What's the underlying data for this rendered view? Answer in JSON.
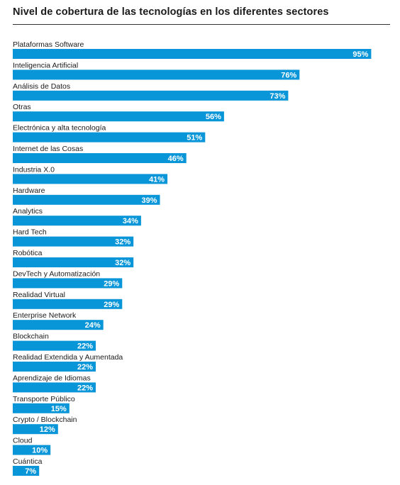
{
  "title": "Nivel de cobertura de las tecnologías en los diferentes sectores",
  "colors": {
    "bar": "#0896d8",
    "rule": "#333333",
    "text": "#1a1a1a",
    "value_text": "#ffffff"
  },
  "chart_data": {
    "type": "bar",
    "orientation": "horizontal",
    "title": "Nivel de cobertura de las tecnologías en los diferentes sectores",
    "categories": [
      "Plataformas Software",
      "Inteligencia Artificial",
      "Análisis de Datos",
      "Otras",
      "Electrónica y alta tecnología",
      "Internet de las Cosas",
      "Industria X.0",
      "Hardware",
      "Analytics",
      "Hard Tech",
      "Robótica",
      "DevTech y Automatización",
      "Realidad Virtual",
      "Enterprise Network",
      "Blockchain",
      "Realidad Extendida y Aumentada",
      "Aprendizaje de Idiomas",
      "Transporte Público",
      "Crypto / Blockchain",
      "Cloud",
      "Cuántica"
    ],
    "values": [
      95,
      76,
      73,
      56,
      51,
      46,
      41,
      39,
      34,
      32,
      32,
      29,
      29,
      24,
      22,
      22,
      22,
      15,
      12,
      10,
      7
    ],
    "value_labels": [
      "95%",
      "76%",
      "73%",
      "56%",
      "51%",
      "46%",
      "41%",
      "39%",
      "34%",
      "32%",
      "32%",
      "29%",
      "29%",
      "24%",
      "22%",
      "22%",
      "22%",
      "15%",
      "12%",
      "10%",
      "7%"
    ],
    "xlim": [
      0,
      100
    ],
    "grid": false,
    "legend": "none",
    "label_position": "above-bar",
    "value_position": "inside-end"
  }
}
